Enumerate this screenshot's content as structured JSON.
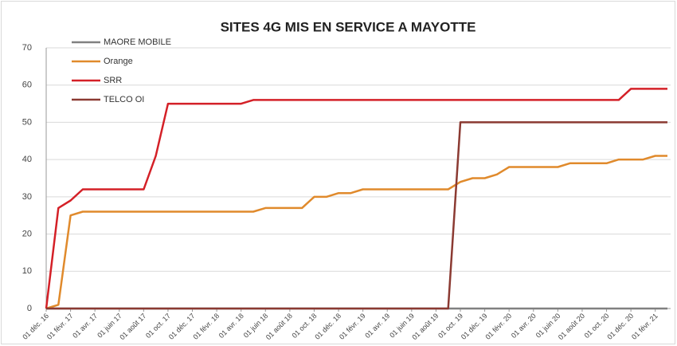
{
  "chart_data": {
    "type": "line",
    "title": "SITES 4G MIS EN SERVICE  A MAYOTTE",
    "categories": [
      "01 déc. 16",
      null,
      "01 févr. 17",
      null,
      "01 avr. 17",
      null,
      "01 juin 17",
      null,
      "01 août 17",
      null,
      "01 oct. 17",
      null,
      "01 déc. 17",
      null,
      "01 févr. 18",
      null,
      "01 avr. 18",
      null,
      "01 juin 18",
      null,
      "01 août 18",
      null,
      "01 oct. 18",
      null,
      "01 déc. 18",
      null,
      "01 févr. 19",
      null,
      "01 avr. 19",
      null,
      "01 juin 19",
      null,
      "01 août 19",
      null,
      "01 oct. 19",
      null,
      "01 déc. 19",
      null,
      "01 févr. 20",
      null,
      "01 avr. 20",
      null,
      "01 juin 20",
      null,
      "01 août 20",
      null,
      "01 oct. 20",
      null,
      "01 déc. 20",
      null,
      "01 févr. 21",
      null
    ],
    "series": [
      {
        "name": "MAORE MOBILE",
        "color": "#808080",
        "values": [
          0,
          0,
          0,
          0,
          0,
          0,
          0,
          0,
          0,
          0,
          0,
          0,
          0,
          0,
          0,
          0,
          0,
          0,
          0,
          0,
          0,
          0,
          0,
          0,
          0,
          0,
          0,
          0,
          0,
          0,
          0,
          0,
          0,
          0,
          0,
          0,
          0,
          0,
          0,
          0,
          0,
          0,
          0,
          0,
          0,
          0,
          0,
          0,
          0,
          0,
          0,
          0
        ]
      },
      {
        "name": "Orange",
        "color": "#e08a2c",
        "values": [
          0,
          1,
          25,
          26,
          26,
          26,
          26,
          26,
          26,
          26,
          26,
          26,
          26,
          26,
          26,
          26,
          26,
          26,
          27,
          27,
          27,
          27,
          30,
          30,
          31,
          31,
          32,
          32,
          32,
          32,
          32,
          32,
          32,
          32,
          34,
          35,
          35,
          36,
          38,
          38,
          38,
          38,
          38,
          39,
          39,
          39,
          39,
          40,
          40,
          40,
          41,
          41
        ]
      },
      {
        "name": "SRR",
        "color": "#d42027",
        "values": [
          0,
          27,
          29,
          32,
          32,
          32,
          32,
          32,
          32,
          41,
          55,
          55,
          55,
          55,
          55,
          55,
          55,
          56,
          56,
          56,
          56,
          56,
          56,
          56,
          56,
          56,
          56,
          56,
          56,
          56,
          56,
          56,
          56,
          56,
          56,
          56,
          56,
          56,
          56,
          56,
          56,
          56,
          56,
          56,
          56,
          56,
          56,
          56,
          59,
          59,
          59,
          59
        ]
      },
      {
        "name": "TELCO OI",
        "color": "#8b3a32",
        "values": [
          0,
          0,
          0,
          0,
          0,
          0,
          0,
          0,
          0,
          0,
          0,
          0,
          0,
          0,
          0,
          0,
          0,
          0,
          0,
          0,
          0,
          0,
          0,
          0,
          0,
          0,
          0,
          0,
          0,
          0,
          0,
          0,
          0,
          0,
          50,
          50,
          50,
          50,
          50,
          50,
          50,
          50,
          50,
          50,
          50,
          50,
          50,
          50,
          50,
          50,
          50,
          50
        ]
      }
    ],
    "ylim": [
      0,
      70
    ],
    "yticks": [
      0,
      10,
      20,
      30,
      40,
      50,
      60,
      70
    ],
    "grid": true,
    "legend": "upper left"
  }
}
